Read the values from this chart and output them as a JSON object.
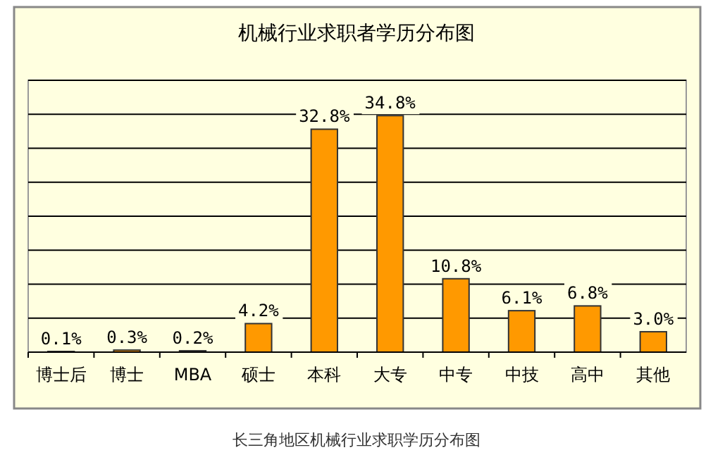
{
  "chart_data": {
    "type": "bar",
    "title": "机械行业求职者学历分布图",
    "categories": [
      "博士后",
      "博士",
      "MBA",
      "硕士",
      "本科",
      "大专",
      "中专",
      "中技",
      "高中",
      "其他"
    ],
    "values": [
      0.1,
      0.3,
      0.2,
      4.2,
      32.8,
      34.8,
      10.8,
      6.1,
      6.8,
      3.0
    ],
    "value_labels": [
      "0.1%",
      "0.3%",
      "0.2%",
      "4.2%",
      "32.8%",
      "34.8%",
      "10.8%",
      "6.1%",
      "6.8%",
      "3.0%"
    ],
    "color": "#ff9900",
    "ylim": [
      0,
      40
    ],
    "yticks": [
      {
        "value": 0,
        "label": null
      },
      {
        "value": 5,
        "label": null
      },
      {
        "value": 10,
        "label": null
      },
      {
        "value": 15,
        "label": null
      },
      {
        "value": 20,
        "label": null
      },
      {
        "value": 25,
        "label": null
      },
      {
        "value": 30,
        "label": null
      },
      {
        "value": 35,
        "label": null
      },
      {
        "value": 40,
        "label": null
      }
    ],
    "grid": "y",
    "tick_labels": "x",
    "annotations": [
      "长三角地区机械行业求职学历分布图"
    ]
  }
}
